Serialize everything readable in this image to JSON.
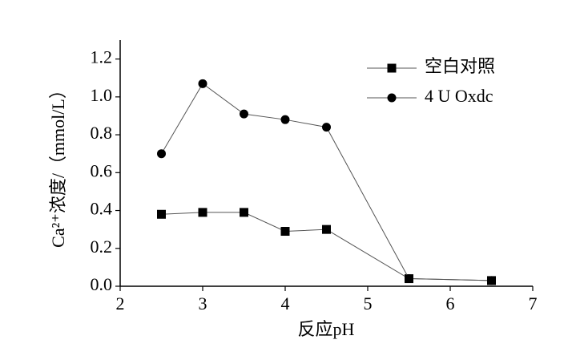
{
  "chart_data": {
    "type": "line",
    "xlabel": "反应pH",
    "ylabel": "Ca²⁺浓度/（mmol/L）",
    "x": [
      2.5,
      3,
      3.5,
      4,
      4.5,
      5.5,
      6.5
    ],
    "series": [
      {
        "name": "空白对照",
        "color": "#000000",
        "marker": "square",
        "values": [
          0.38,
          0.39,
          0.39,
          0.29,
          0.3,
          0.04,
          0.03
        ]
      },
      {
        "name": "4 U Oxdc",
        "color": "#000000",
        "marker": "circle",
        "values": [
          0.7,
          1.07,
          0.91,
          0.88,
          0.84,
          0.04,
          0.03
        ]
      }
    ],
    "xlim": [
      2,
      7
    ],
    "xticks": [
      2,
      3,
      4,
      5,
      6,
      7
    ],
    "ylim": [
      0,
      1.3
    ],
    "yticks": [
      {
        "value": 0,
        "label": "0.0"
      },
      {
        "value": 0.2,
        "label": "0.2"
      },
      {
        "value": 0.4,
        "label": "0.4"
      },
      {
        "value": 0.6,
        "label": "0.6"
      },
      {
        "value": 0.8,
        "label": "0.8"
      },
      {
        "value": 1.0,
        "label": "1.0"
      },
      {
        "value": 1.2,
        "label": "1.2"
      }
    ],
    "legend": "upper right"
  }
}
